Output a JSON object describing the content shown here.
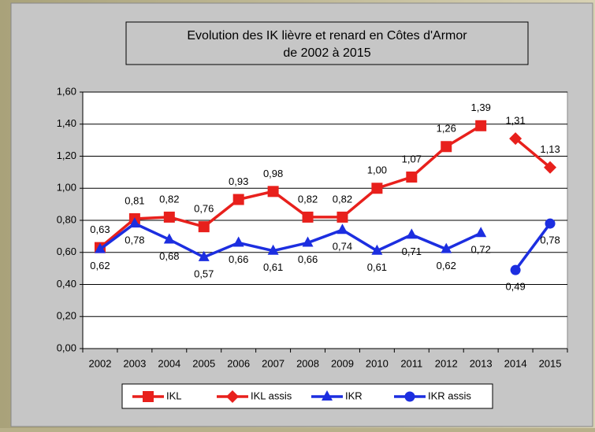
{
  "chart_data": {
    "type": "line",
    "title": "Evolution des IK lièvre et renard en Côtes d'Armor",
    "subtitle": "de 2002 à 2015",
    "categories": [
      "2002",
      "2003",
      "2004",
      "2005",
      "2006",
      "2007",
      "2008",
      "2009",
      "2010",
      "2011",
      "2012",
      "2013",
      "2014",
      "2015"
    ],
    "series": [
      {
        "name": "IKL",
        "color": "#e8201c",
        "marker": "square",
        "values": [
          0.63,
          0.81,
          0.82,
          0.76,
          0.93,
          0.98,
          0.82,
          0.82,
          1.0,
          1.07,
          1.26,
          1.39,
          null,
          null
        ],
        "value_labels": [
          "0,63",
          "0,81",
          "0,82",
          "0,76",
          "0,93",
          "0,98",
          "0,82",
          "0,82",
          "1,00",
          "1,07",
          "1,26",
          "1,39",
          null,
          null
        ]
      },
      {
        "name": "IKL assis",
        "color": "#e8201c",
        "marker": "diamond",
        "values": [
          null,
          null,
          null,
          null,
          null,
          null,
          null,
          null,
          null,
          null,
          null,
          null,
          1.31,
          1.13
        ],
        "value_labels": [
          null,
          null,
          null,
          null,
          null,
          null,
          null,
          null,
          null,
          null,
          null,
          null,
          "1,31",
          "1,13"
        ]
      },
      {
        "name": "IKR",
        "color": "#1c2ee0",
        "marker": "triangle",
        "values": [
          0.62,
          0.78,
          0.68,
          0.57,
          0.66,
          0.61,
          0.66,
          0.74,
          0.61,
          0.71,
          0.62,
          0.72,
          null,
          null
        ],
        "value_labels": [
          "0,62",
          "0,78",
          "0,68",
          "0,57",
          "0,66",
          "0,61",
          "0,66",
          "0,74",
          "0,61",
          "0,71",
          "0,62",
          "0,72",
          null,
          null
        ]
      },
      {
        "name": "IKR assis",
        "color": "#1c2ee0",
        "marker": "circle",
        "values": [
          null,
          null,
          null,
          null,
          null,
          null,
          null,
          null,
          null,
          null,
          null,
          null,
          0.49,
          0.78
        ],
        "value_labels": [
          null,
          null,
          null,
          null,
          null,
          null,
          null,
          null,
          null,
          null,
          null,
          null,
          "0,49",
          "0,78"
        ]
      }
    ],
    "ylim": [
      0,
      1.6
    ],
    "yticks": [
      {
        "value": 0,
        "label": "0,00"
      },
      {
        "value": 0.2,
        "label": "0,20"
      },
      {
        "value": 0.4,
        "label": "0,40"
      },
      {
        "value": 0.6,
        "label": "0,60"
      },
      {
        "value": 0.8,
        "label": "0,80"
      },
      {
        "value": 1.0,
        "label": "1,00"
      },
      {
        "value": 1.2,
        "label": "1,20"
      },
      {
        "value": 1.4,
        "label": "1,40"
      },
      {
        "value": 1.6,
        "label": "1,60"
      }
    ],
    "grid": true,
    "legend": "bottom"
  }
}
